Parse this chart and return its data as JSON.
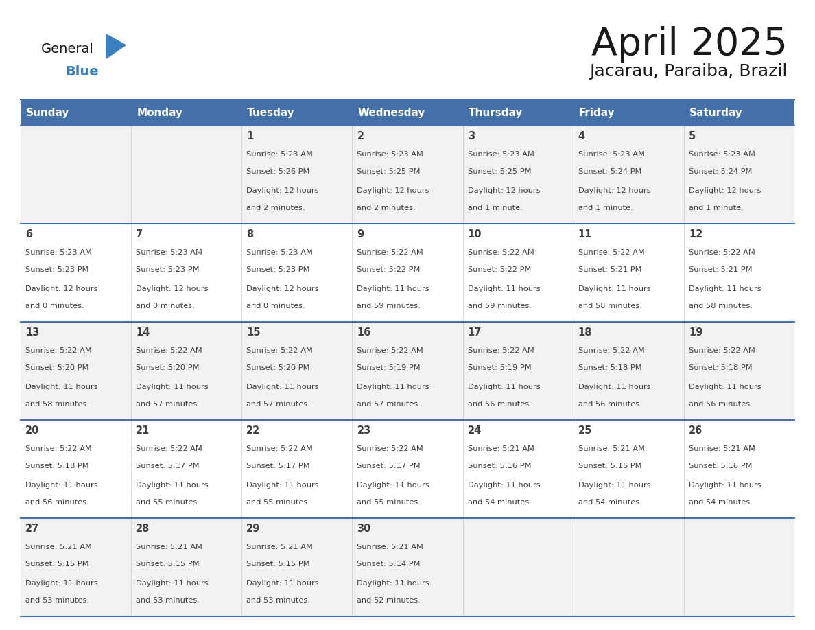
{
  "title": "April 2025",
  "subtitle": "Jacarau, Paraiba, Brazil",
  "header_bg": "#4472A8",
  "header_text_color": "#FFFFFF",
  "days_of_week": [
    "Sunday",
    "Monday",
    "Tuesday",
    "Wednesday",
    "Thursday",
    "Friday",
    "Saturday"
  ],
  "row_colors": [
    "#F2F2F2",
    "#FFFFFF"
  ],
  "border_color": "#4472A8",
  "text_color": "#404040",
  "logo_text_color": "#1a1a1a",
  "logo_blue_color": "#3A7FC1",
  "calendar_data": [
    [
      {
        "day": "",
        "sunrise": "",
        "sunset": "",
        "daylight": ""
      },
      {
        "day": "",
        "sunrise": "",
        "sunset": "",
        "daylight": ""
      },
      {
        "day": "1",
        "sunrise": "5:23 AM",
        "sunset": "5:26 PM",
        "daylight": "12 hours and 2 minutes."
      },
      {
        "day": "2",
        "sunrise": "5:23 AM",
        "sunset": "5:25 PM",
        "daylight": "12 hours and 2 minutes."
      },
      {
        "day": "3",
        "sunrise": "5:23 AM",
        "sunset": "5:25 PM",
        "daylight": "12 hours and 1 minute."
      },
      {
        "day": "4",
        "sunrise": "5:23 AM",
        "sunset": "5:24 PM",
        "daylight": "12 hours and 1 minute."
      },
      {
        "day": "5",
        "sunrise": "5:23 AM",
        "sunset": "5:24 PM",
        "daylight": "12 hours and 1 minute."
      }
    ],
    [
      {
        "day": "6",
        "sunrise": "5:23 AM",
        "sunset": "5:23 PM",
        "daylight": "12 hours and 0 minutes."
      },
      {
        "day": "7",
        "sunrise": "5:23 AM",
        "sunset": "5:23 PM",
        "daylight": "12 hours and 0 minutes."
      },
      {
        "day": "8",
        "sunrise": "5:23 AM",
        "sunset": "5:23 PM",
        "daylight": "12 hours and 0 minutes."
      },
      {
        "day": "9",
        "sunrise": "5:22 AM",
        "sunset": "5:22 PM",
        "daylight": "11 hours and 59 minutes."
      },
      {
        "day": "10",
        "sunrise": "5:22 AM",
        "sunset": "5:22 PM",
        "daylight": "11 hours and 59 minutes."
      },
      {
        "day": "11",
        "sunrise": "5:22 AM",
        "sunset": "5:21 PM",
        "daylight": "11 hours and 58 minutes."
      },
      {
        "day": "12",
        "sunrise": "5:22 AM",
        "sunset": "5:21 PM",
        "daylight": "11 hours and 58 minutes."
      }
    ],
    [
      {
        "day": "13",
        "sunrise": "5:22 AM",
        "sunset": "5:20 PM",
        "daylight": "11 hours and 58 minutes."
      },
      {
        "day": "14",
        "sunrise": "5:22 AM",
        "sunset": "5:20 PM",
        "daylight": "11 hours and 57 minutes."
      },
      {
        "day": "15",
        "sunrise": "5:22 AM",
        "sunset": "5:20 PM",
        "daylight": "11 hours and 57 minutes."
      },
      {
        "day": "16",
        "sunrise": "5:22 AM",
        "sunset": "5:19 PM",
        "daylight": "11 hours and 57 minutes."
      },
      {
        "day": "17",
        "sunrise": "5:22 AM",
        "sunset": "5:19 PM",
        "daylight": "11 hours and 56 minutes."
      },
      {
        "day": "18",
        "sunrise": "5:22 AM",
        "sunset": "5:18 PM",
        "daylight": "11 hours and 56 minutes."
      },
      {
        "day": "19",
        "sunrise": "5:22 AM",
        "sunset": "5:18 PM",
        "daylight": "11 hours and 56 minutes."
      }
    ],
    [
      {
        "day": "20",
        "sunrise": "5:22 AM",
        "sunset": "5:18 PM",
        "daylight": "11 hours and 56 minutes."
      },
      {
        "day": "21",
        "sunrise": "5:22 AM",
        "sunset": "5:17 PM",
        "daylight": "11 hours and 55 minutes."
      },
      {
        "day": "22",
        "sunrise": "5:22 AM",
        "sunset": "5:17 PM",
        "daylight": "11 hours and 55 minutes."
      },
      {
        "day": "23",
        "sunrise": "5:22 AM",
        "sunset": "5:17 PM",
        "daylight": "11 hours and 55 minutes."
      },
      {
        "day": "24",
        "sunrise": "5:21 AM",
        "sunset": "5:16 PM",
        "daylight": "11 hours and 54 minutes."
      },
      {
        "day": "25",
        "sunrise": "5:21 AM",
        "sunset": "5:16 PM",
        "daylight": "11 hours and 54 minutes."
      },
      {
        "day": "26",
        "sunrise": "5:21 AM",
        "sunset": "5:16 PM",
        "daylight": "11 hours and 54 minutes."
      }
    ],
    [
      {
        "day": "27",
        "sunrise": "5:21 AM",
        "sunset": "5:15 PM",
        "daylight": "11 hours and 53 minutes."
      },
      {
        "day": "28",
        "sunrise": "5:21 AM",
        "sunset": "5:15 PM",
        "daylight": "11 hours and 53 minutes."
      },
      {
        "day": "29",
        "sunrise": "5:21 AM",
        "sunset": "5:15 PM",
        "daylight": "11 hours and 53 minutes."
      },
      {
        "day": "30",
        "sunrise": "5:21 AM",
        "sunset": "5:14 PM",
        "daylight": "11 hours and 52 minutes."
      },
      {
        "day": "",
        "sunrise": "",
        "sunset": "",
        "daylight": ""
      },
      {
        "day": "",
        "sunrise": "",
        "sunset": "",
        "daylight": ""
      },
      {
        "day": "",
        "sunrise": "",
        "sunset": "",
        "daylight": ""
      }
    ]
  ]
}
